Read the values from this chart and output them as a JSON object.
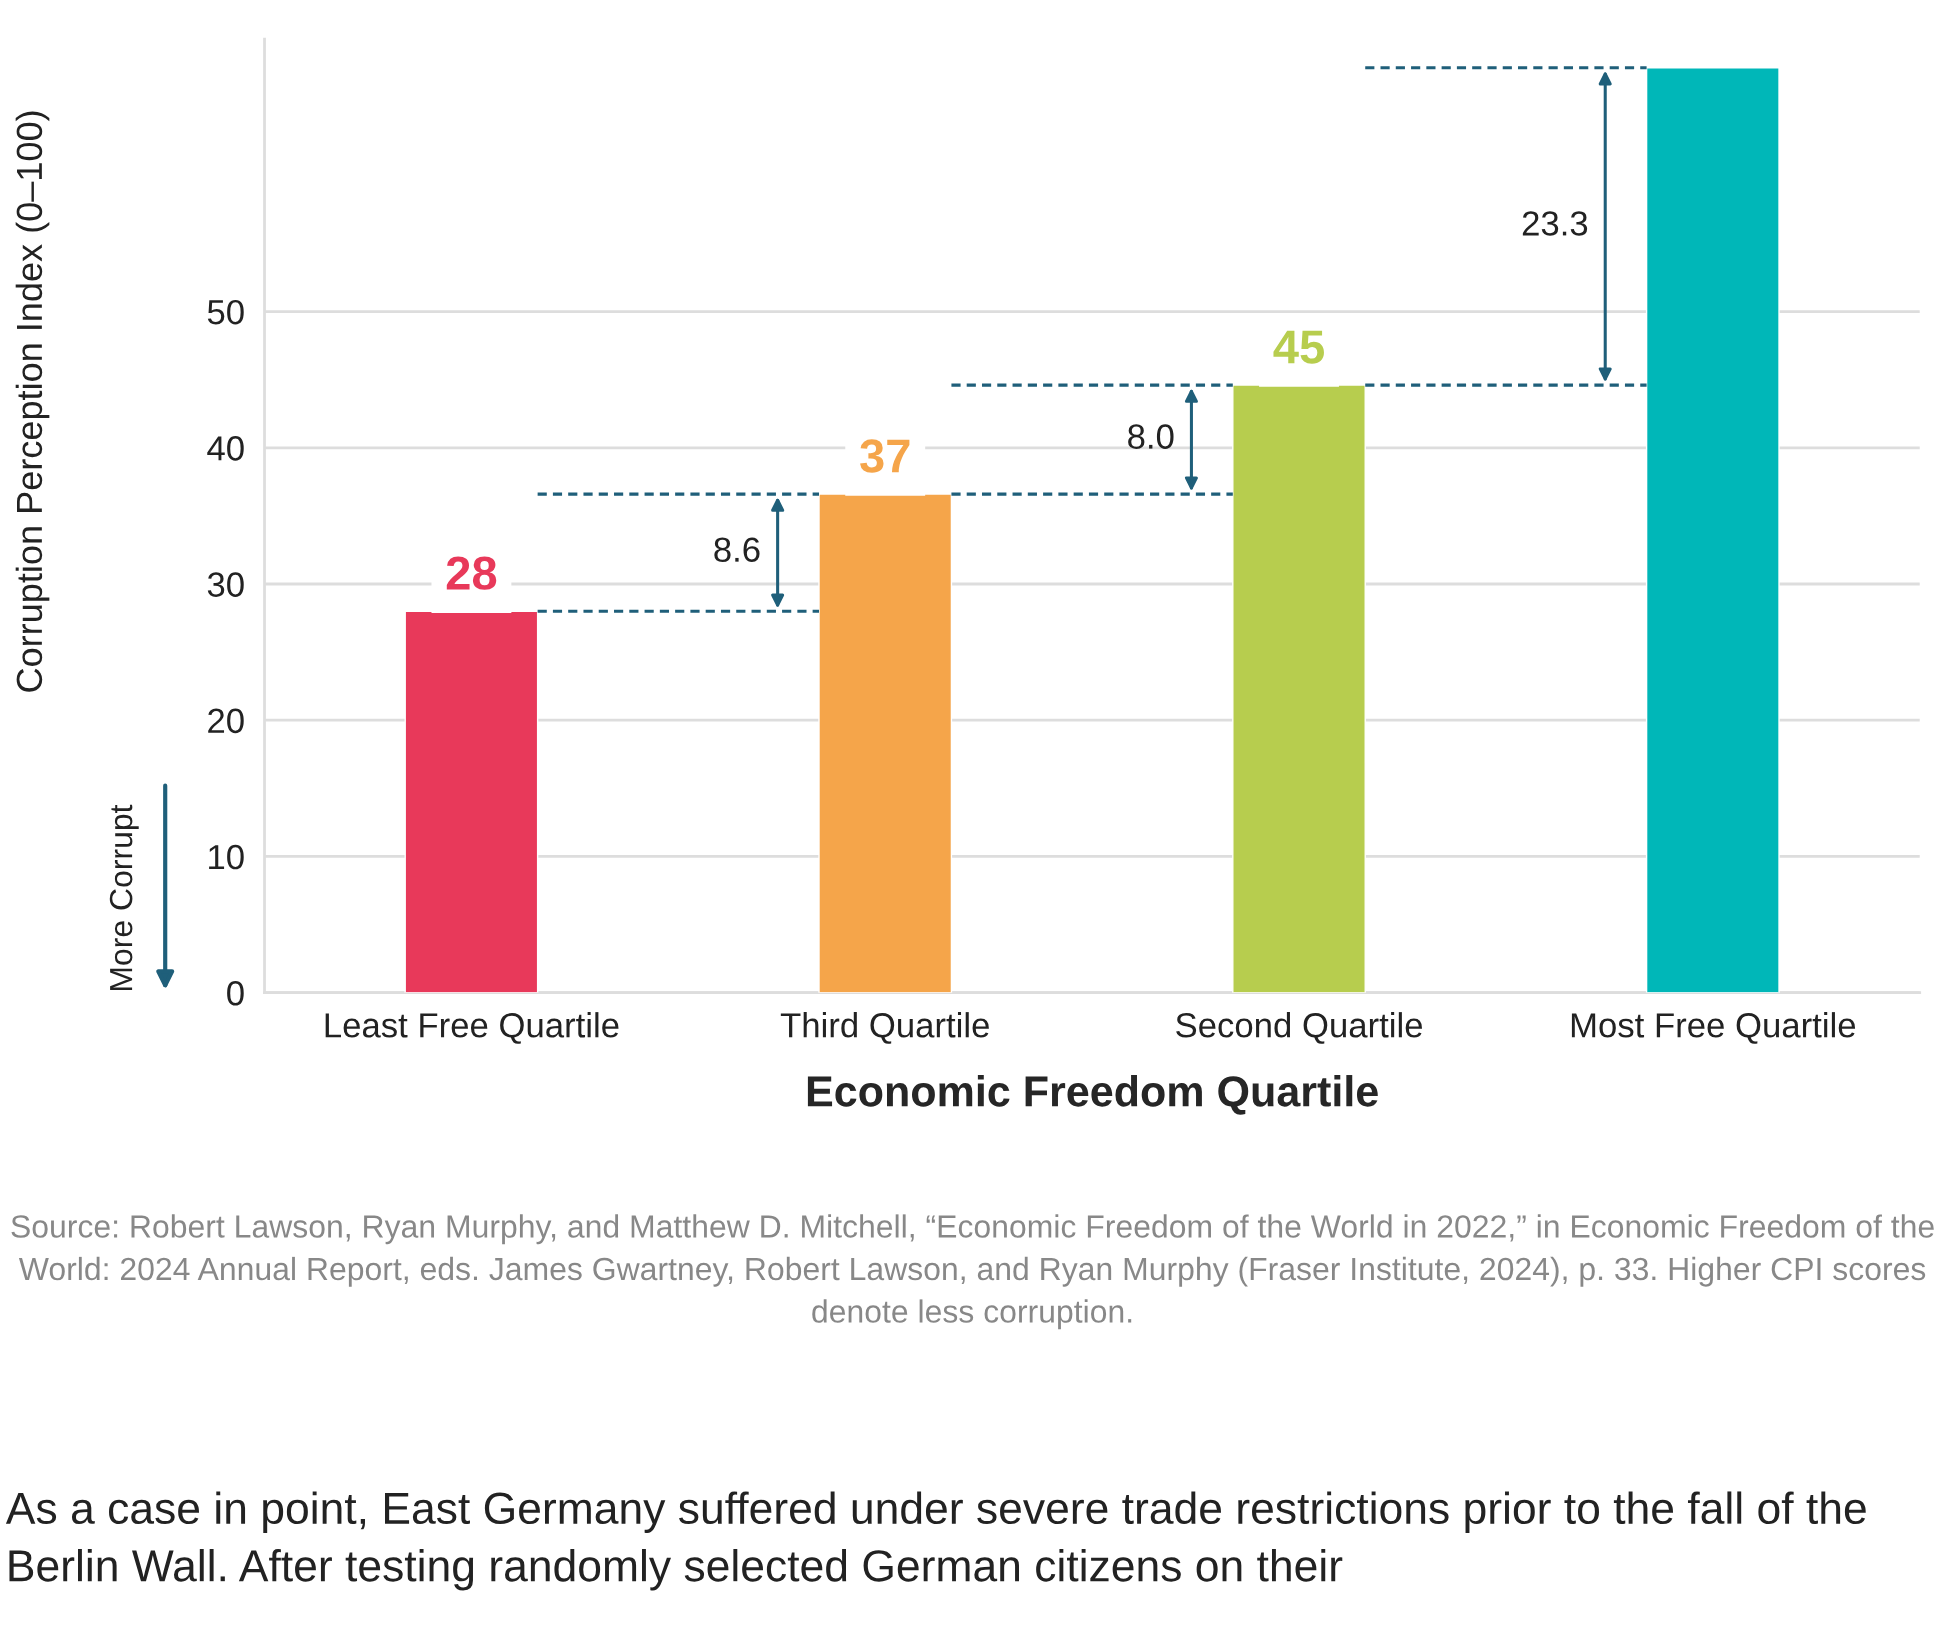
{
  "chart_data": {
    "type": "bar",
    "xlabel": "Economic Freedom Quartile",
    "ylabel": "Corruption Perception Index (0–100)",
    "categories": [
      "Least Free Quartile",
      "Third Quartile",
      "Second Quartile",
      "Most Free Quartile"
    ],
    "values": [
      28.0,
      36.6,
      44.6,
      67.9
    ],
    "colors": [
      "#e8395a",
      "#f5a54a",
      "#b7cd4e",
      "#00b7b8"
    ],
    "value_labels": [
      "28",
      "37",
      "45",
      null
    ],
    "ylim": [
      0,
      70
    ],
    "yticks": [
      0,
      10,
      20,
      30,
      40,
      50
    ],
    "grid": "y",
    "annotations": [
      "8.6",
      "8.0",
      "23.3",
      "More Corrupt",
      "Source: Robert Lawson, Ryan Murphy, and Matthew D. Mitchell, “Economic Freedom of the World in 2022,” in Economic Freedom of the World: 2024 Annual Report, eds. James Gwartney, Robert Lawson, and Ryan Murphy (Fraser Institute, 2024), p. 33. Higher CPI scores denote less corruption.",
      "As a case in point, East Germany suffered under severe trade restrictions prior to the fall of the Berlin Wall. After testing randomly selected German citizens on their"
    ]
  }
}
